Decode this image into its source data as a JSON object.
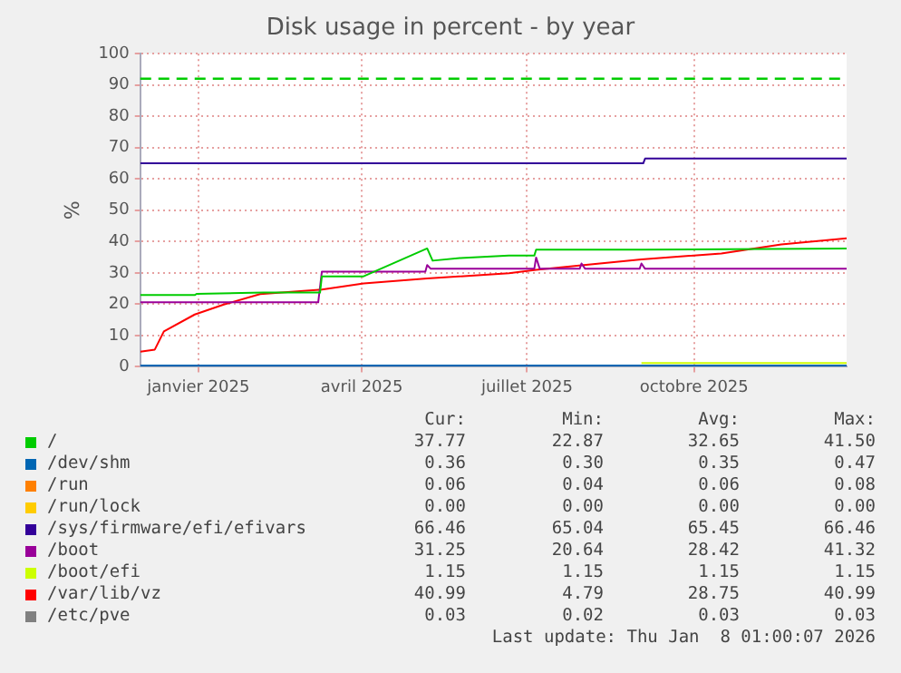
{
  "chart_data": {
    "type": "line",
    "title": "Disk usage in percent - by year",
    "ylabel": "%",
    "xlim": [
      "2024-11-30",
      "2025-12-24"
    ],
    "xticks": [
      {
        "value": "2025-01-01",
        "label": "janvier 2025"
      },
      {
        "value": "2025-04-01",
        "label": "avril 2025"
      },
      {
        "value": "2025-07-01",
        "label": "juillet 2025"
      },
      {
        "value": "2025-10-01",
        "label": "octobre 2025"
      }
    ],
    "ylim": [
      0,
      100
    ],
    "yticks": [
      0,
      10,
      20,
      30,
      40,
      50,
      60,
      70,
      80,
      90,
      100
    ],
    "grid": true,
    "legend": "bottom",
    "marker": "none",
    "line_style": "solid",
    "ref_lines": [
      {
        "axis": "y",
        "value": 92,
        "color": "#00cc00",
        "line_style": "dashed"
      }
    ],
    "series": [
      {
        "name": "/",
        "color": "#00cc00",
        "x": [
          "2024-11-30",
          "2024-12-30",
          "2024-12-31",
          "2025-02-06",
          "2025-03-09",
          "2025-03-10",
          "2025-04-02",
          "2025-05-07",
          "2025-05-10",
          "2025-05-25",
          "2025-06-21",
          "2025-07-05",
          "2025-07-06",
          "2025-07-31",
          "2025-09-02",
          "2025-12-24"
        ],
        "values": [
          22.9,
          22.9,
          23.3,
          23.7,
          23.7,
          28.9,
          28.9,
          37.8,
          33.9,
          34.7,
          35.5,
          35.5,
          37.4,
          37.4,
          37.4,
          37.8
        ]
      },
      {
        "name": "/dev/shm",
        "color": "#0066b3",
        "x": [
          "2024-11-30",
          "2025-12-24"
        ],
        "values": [
          0.4,
          0.4
        ]
      },
      {
        "name": "/run",
        "color": "#ff8000"
      },
      {
        "name": "/run/lock",
        "color": "#ffcc00"
      },
      {
        "name": "/sys/firmware/efi/efivars",
        "color": "#330099",
        "x": [
          "2024-11-30",
          "2025-09-03",
          "2025-09-04",
          "2025-12-24"
        ],
        "values": [
          65.0,
          65.0,
          66.5,
          66.5
        ]
      },
      {
        "name": "/boot",
        "color": "#990099",
        "x": [
          "2024-11-30",
          "2025-03-08",
          "2025-03-10",
          "2025-05-06",
          "2025-05-07",
          "2025-05-09",
          "2025-07-05",
          "2025-07-06",
          "2025-07-08",
          "2025-07-30",
          "2025-07-31",
          "2025-08-02",
          "2025-09-01",
          "2025-09-02",
          "2025-09-04",
          "2025-12-24"
        ],
        "values": [
          20.6,
          20.6,
          30.4,
          30.4,
          32.5,
          31.3,
          31.3,
          34.9,
          31.3,
          31.3,
          33,
          31.3,
          31.3,
          33,
          31.3,
          31.3
        ]
      },
      {
        "name": "/boot/efi",
        "color": "#ccff00",
        "x": [
          "2025-09-02",
          "2025-12-24"
        ],
        "values": [
          1.2,
          1.2
        ]
      },
      {
        "name": "/var/lib/vz",
        "color": "#ff0000",
        "x": [
          "2024-11-30",
          "2024-12-08",
          "2024-12-13",
          "2024-12-30",
          "2025-01-15",
          "2025-02-04",
          "2025-03-10",
          "2025-04-02",
          "2025-05-07",
          "2025-06-21",
          "2025-07-06",
          "2025-07-31",
          "2025-09-02",
          "2025-10-16",
          "2025-11-18",
          "2025-12-24"
        ],
        "values": [
          4.8,
          5.5,
          11.3,
          16.7,
          19.9,
          23.2,
          24.7,
          26.6,
          28.2,
          29.9,
          31.0,
          32.4,
          34.3,
          36.2,
          39.1,
          41.0
        ]
      },
      {
        "name": "/etc/pve",
        "color": "#808080"
      }
    ],
    "annotations": [
      "Cur:",
      "Min:",
      "Avg:",
      "Max:",
      "37.77",
      "22.87",
      "32.65",
      "41.50",
      "0.36",
      "0.30",
      "0.35",
      "0.47",
      "0.06",
      "0.04",
      "0.06",
      "0.08",
      "0.00",
      "0.00",
      "0.00",
      "0.00",
      "66.46",
      "65.04",
      "65.45",
      "66.46",
      "31.25",
      "20.64",
      "28.42",
      "41.32",
      "1.15",
      "1.15",
      "1.15",
      "1.15",
      "40.99",
      "4.79",
      "28.75",
      "40.99",
      "0.03",
      "0.02",
      "0.03",
      "0.03",
      "Last update: Thu Jan  8 01:00:07 2026"
    ]
  }
}
